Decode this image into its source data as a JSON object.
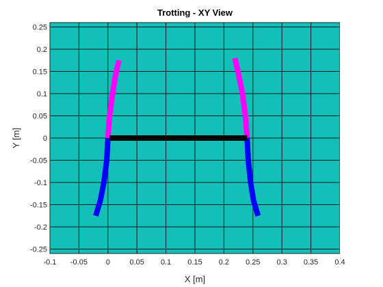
{
  "chart_data": {
    "type": "line",
    "title": "Trotting - XY View",
    "xlabel": "X [m]",
    "ylabel": "Y [m]",
    "xlim": [
      -0.1,
      0.4
    ],
    "ylim": [
      -0.26,
      0.26
    ],
    "xticks": [
      -0.1,
      -0.05,
      0,
      0.05,
      0.1,
      0.15,
      0.2,
      0.25,
      0.3,
      0.35,
      0.4
    ],
    "xtick_labels": [
      "-0.1",
      "-0.05",
      "0",
      "0.05",
      "0.1",
      "0.15",
      "0.2",
      "0.25",
      "0.3",
      "0.35",
      "0.4"
    ],
    "yticks": [
      -0.25,
      -0.2,
      -0.15,
      -0.1,
      -0.05,
      0,
      0.05,
      0.1,
      0.15,
      0.2,
      0.25
    ],
    "ytick_labels": [
      "-0.25",
      "-0.2",
      "-0.15",
      "-0.1",
      "-0.05",
      "0",
      "0.05",
      "0.1",
      "0.15",
      "0.2",
      "0.25"
    ],
    "grid": true,
    "background_color": "#13bfb9",
    "series": [
      {
        "color": "#ff00ff",
        "x": [
          0,
          0.003,
          0.008,
          0.013,
          0.019
        ],
        "y": [
          0,
          0.05,
          0.1,
          0.14,
          0.175
        ]
      },
      {
        "color": "#0000ff",
        "x": [
          0,
          -0.002,
          -0.007,
          -0.013,
          -0.021
        ],
        "y": [
          0,
          -0.05,
          -0.1,
          -0.14,
          -0.175
        ]
      },
      {
        "color": "#ff00ff",
        "x": [
          0.24,
          0.237,
          0.232,
          0.226,
          0.219
        ],
        "y": [
          0,
          0.05,
          0.1,
          0.14,
          0.18
        ]
      },
      {
        "color": "#0000ff",
        "x": [
          0.24,
          0.242,
          0.246,
          0.251,
          0.259
        ],
        "y": [
          0,
          -0.05,
          -0.1,
          -0.14,
          -0.175
        ]
      },
      {
        "color": "#000000",
        "x": [
          0.003,
          0.24
        ],
        "y": [
          0,
          0
        ]
      }
    ]
  }
}
